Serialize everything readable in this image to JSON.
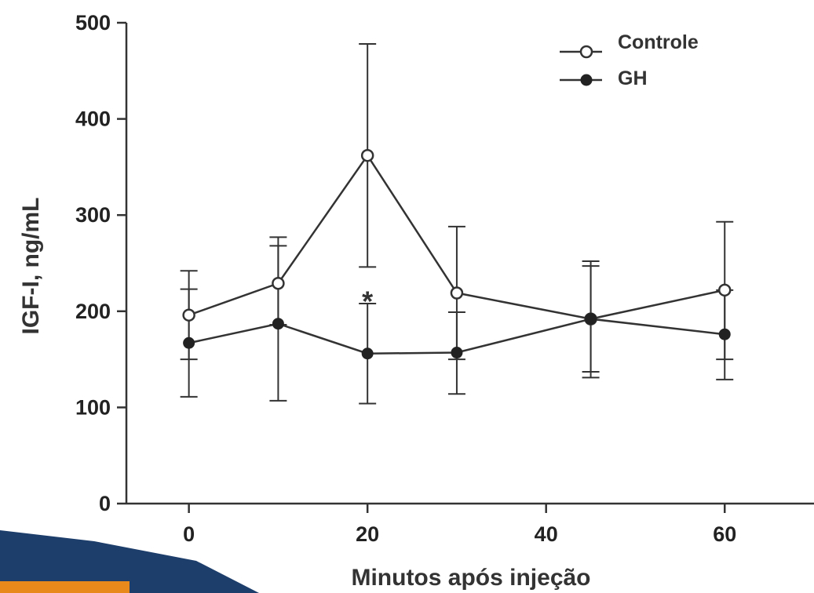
{
  "chart_data": {
    "type": "line",
    "title": "",
    "xlabel": "Minutos após injeção",
    "ylabel": "IGF-I, ng/mL",
    "xlim": [
      -7,
      70
    ],
    "ylim": [
      0,
      500
    ],
    "xticks": [
      0,
      20,
      40,
      60
    ],
    "yticks": [
      0,
      100,
      200,
      300,
      400,
      500
    ],
    "x": [
      0,
      10,
      20,
      30,
      45,
      60
    ],
    "series": [
      {
        "name": "Controle",
        "marker": "open-circle",
        "values": [
          196,
          229,
          362,
          219,
          192,
          222
        ],
        "err_hi": [
          242,
          277,
          478,
          288,
          252,
          293
        ],
        "err_lo": [
          150,
          186,
          246,
          150,
          131,
          150
        ]
      },
      {
        "name": "GH",
        "marker": "filled-circle",
        "values": [
          167,
          187,
          156,
          157,
          192,
          176
        ],
        "err_hi": [
          223,
          268,
          208,
          199,
          247,
          222
        ],
        "err_lo": [
          111,
          107,
          104,
          114,
          137,
          129
        ]
      }
    ],
    "annotations": [
      {
        "text": "*",
        "x": 20,
        "y": 220
      }
    ],
    "legend_position": "top-right",
    "grid": false,
    "colors": {
      "line": "#333333",
      "background": "#ffffff",
      "decor_blue": "#1d3d6b",
      "decor_orange": "#e8891c"
    }
  }
}
